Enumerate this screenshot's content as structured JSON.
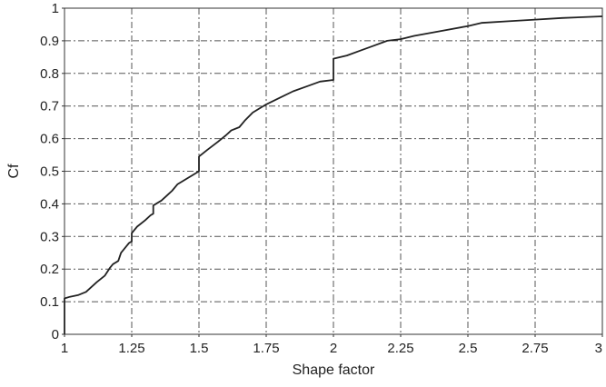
{
  "chart_data": {
    "type": "line",
    "title": "",
    "xlabel": "Shape factor",
    "ylabel": "Cf",
    "xlim": [
      1,
      3
    ],
    "ylim": [
      0,
      1
    ],
    "grid": true,
    "x_ticks": [
      1,
      1.25,
      1.5,
      1.75,
      2,
      2.25,
      2.5,
      2.75,
      3
    ],
    "x_tick_labels": [
      "1",
      "1.25",
      "1.5",
      "1.75",
      "2",
      "2.25",
      "2.5",
      "2.75",
      "3"
    ],
    "y_ticks": [
      0,
      0.1,
      0.2,
      0.3,
      0.4,
      0.5,
      0.6,
      0.7,
      0.8,
      0.9,
      1
    ],
    "y_tick_labels": [
      "0",
      "0.1",
      "0.2",
      "0.3",
      "0.4",
      "0.5",
      "0.6",
      "0.7",
      "0.8",
      "0.9",
      "1"
    ],
    "series": [
      {
        "color": "#222222",
        "x": [
          1.0,
          1.0,
          1.02,
          1.05,
          1.08,
          1.1,
          1.12,
          1.15,
          1.17,
          1.18,
          1.2,
          1.21,
          1.23,
          1.24,
          1.25,
          1.25,
          1.27,
          1.3,
          1.32,
          1.33,
          1.33,
          1.36,
          1.38,
          1.4,
          1.42,
          1.45,
          1.48,
          1.5,
          1.5,
          1.53,
          1.57,
          1.6,
          1.62,
          1.65,
          1.67,
          1.7,
          1.75,
          1.8,
          1.85,
          1.9,
          1.95,
          2.0,
          2.0,
          2.05,
          2.1,
          2.15,
          2.2,
          2.25,
          2.3,
          2.4,
          2.5,
          2.55,
          2.65,
          2.75,
          2.85,
          3.0
        ],
        "y": [
          0.0,
          0.11,
          0.115,
          0.12,
          0.13,
          0.145,
          0.16,
          0.18,
          0.205,
          0.215,
          0.225,
          0.25,
          0.27,
          0.28,
          0.285,
          0.31,
          0.33,
          0.35,
          0.365,
          0.37,
          0.395,
          0.41,
          0.425,
          0.44,
          0.46,
          0.475,
          0.49,
          0.5,
          0.545,
          0.565,
          0.59,
          0.61,
          0.625,
          0.635,
          0.655,
          0.68,
          0.705,
          0.725,
          0.745,
          0.76,
          0.775,
          0.78,
          0.845,
          0.855,
          0.87,
          0.885,
          0.9,
          0.905,
          0.915,
          0.93,
          0.945,
          0.955,
          0.96,
          0.965,
          0.97,
          0.975
        ]
      }
    ]
  }
}
